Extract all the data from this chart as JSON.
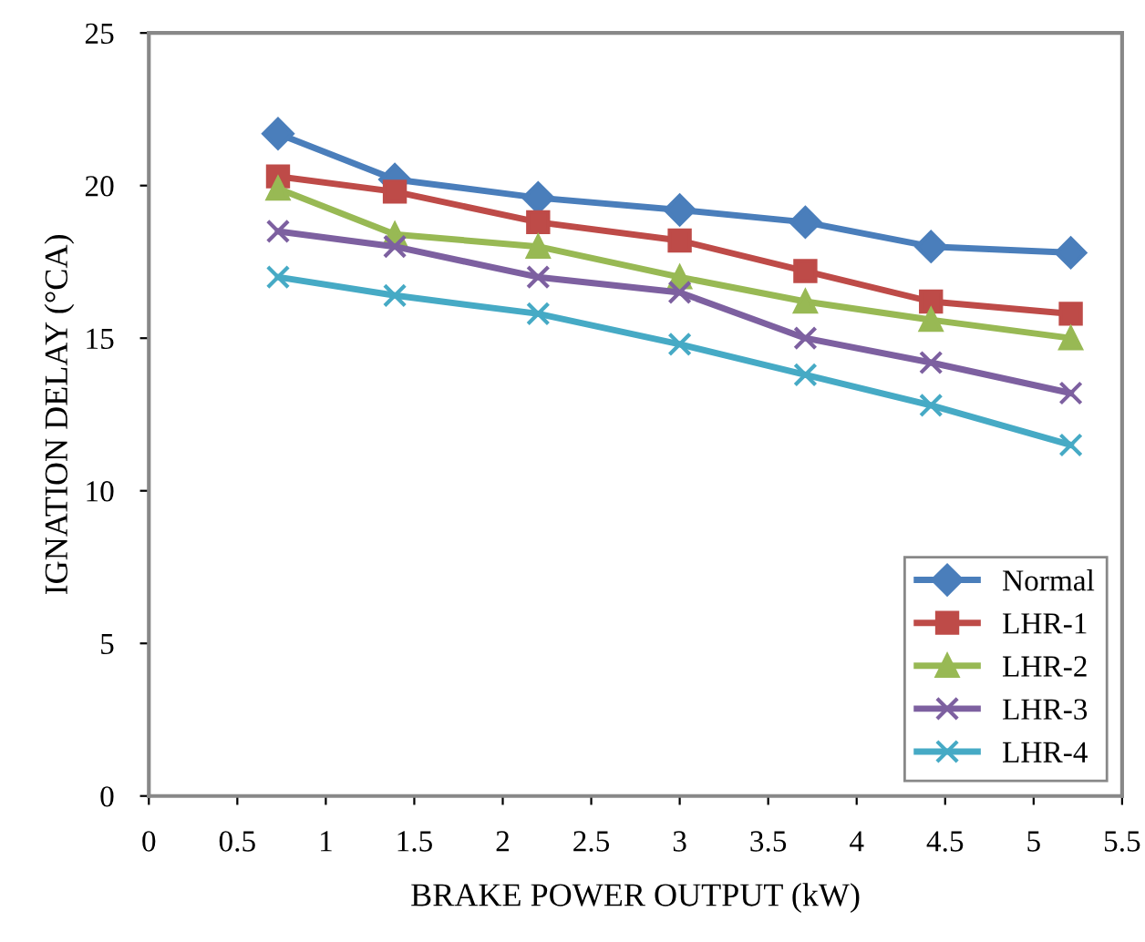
{
  "chart_data": {
    "type": "line",
    "xlabel": "BRAKE POWER OUTPUT (kW)",
    "ylabel": "IGNATION DELAY (°CA)",
    "x": [
      0.73,
      1.39,
      2.2,
      3.0,
      3.71,
      4.42,
      5.21
    ],
    "xlim": [
      0,
      5.5
    ],
    "xticks": [
      0,
      0.5,
      1,
      1.5,
      2,
      2.5,
      3,
      3.5,
      4,
      4.5,
      5,
      5.5
    ],
    "ylim": [
      0,
      25
    ],
    "yticks": [
      0,
      5,
      10,
      15,
      20,
      25
    ],
    "grid": false,
    "legend": "bottom right",
    "series": [
      {
        "name": "Normal",
        "color": "#4a7ebb",
        "marker": "diamond",
        "values": [
          21.7,
          20.2,
          19.6,
          19.2,
          18.8,
          18.0,
          17.8
        ]
      },
      {
        "name": "LHR-1",
        "color": "#be4b48",
        "marker": "square",
        "values": [
          20.3,
          19.8,
          18.8,
          18.2,
          17.2,
          16.2,
          15.8
        ]
      },
      {
        "name": "LHR-2",
        "color": "#98b954",
        "marker": "triangle",
        "values": [
          19.9,
          18.4,
          18.0,
          17.0,
          16.2,
          15.6,
          15.0
        ]
      },
      {
        "name": "LHR-3",
        "color": "#7d60a0",
        "marker": "cross",
        "values": [
          18.5,
          18.0,
          17.0,
          16.5,
          15.0,
          14.2,
          13.2
        ]
      },
      {
        "name": "LHR-4",
        "color": "#46aac5",
        "marker": "cross",
        "values": [
          17.0,
          16.4,
          15.8,
          14.8,
          13.8,
          12.8,
          11.5
        ]
      }
    ]
  }
}
